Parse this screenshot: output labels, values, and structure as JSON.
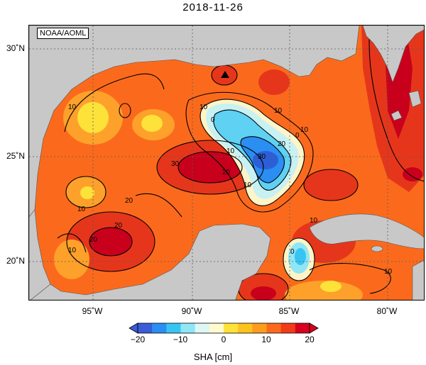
{
  "map": {
    "title": "2018-11-26",
    "credit": "NOAA/AOML",
    "lat_labels": [
      {
        "value": 30,
        "text": "30˚N"
      },
      {
        "value": 25,
        "text": "25˚N"
      },
      {
        "value": 20,
        "text": "20˚N"
      }
    ],
    "lon_labels": [
      {
        "value": -95,
        "text": "95˚W"
      },
      {
        "value": -90,
        "text": "90˚W"
      },
      {
        "value": -85,
        "text": "85˚W"
      },
      {
        "value": -80,
        "text": "80˚W"
      }
    ],
    "extent": {
      "lon_min": -98.3,
      "lon_max": -78.0,
      "lat_min": 18.1,
      "lat_max": 31.2
    },
    "contour_labels": [
      "10",
      "10",
      "10",
      "0",
      "10",
      "20",
      "30",
      "20",
      "30",
      "10",
      "0",
      "10",
      "20",
      "20",
      "20",
      "10",
      "10",
      "0",
      "10",
      "10"
    ],
    "colors": {
      "land": "#c8c8c8",
      "ocean_base": "#fb6a1c",
      "grid": "#5a5a5a"
    }
  },
  "colorbar": {
    "title": "SHA [cm]",
    "min": -20,
    "max": 20,
    "ticks": [
      {
        "value": -20,
        "text": "−20"
      },
      {
        "value": -10,
        "text": "−10"
      },
      {
        "value": 0,
        "text": "0"
      },
      {
        "value": 10,
        "text": "10"
      },
      {
        "value": 20,
        "text": "20"
      }
    ],
    "colors": [
      "#3b5bd8",
      "#2b8ef2",
      "#38c4f3",
      "#8fe6f4",
      "#dff7f4",
      "#fffacf",
      "#fde23a",
      "#fdc21d",
      "#fd9c1e",
      "#fb6a1c",
      "#f23b18",
      "#d8001e"
    ]
  }
}
